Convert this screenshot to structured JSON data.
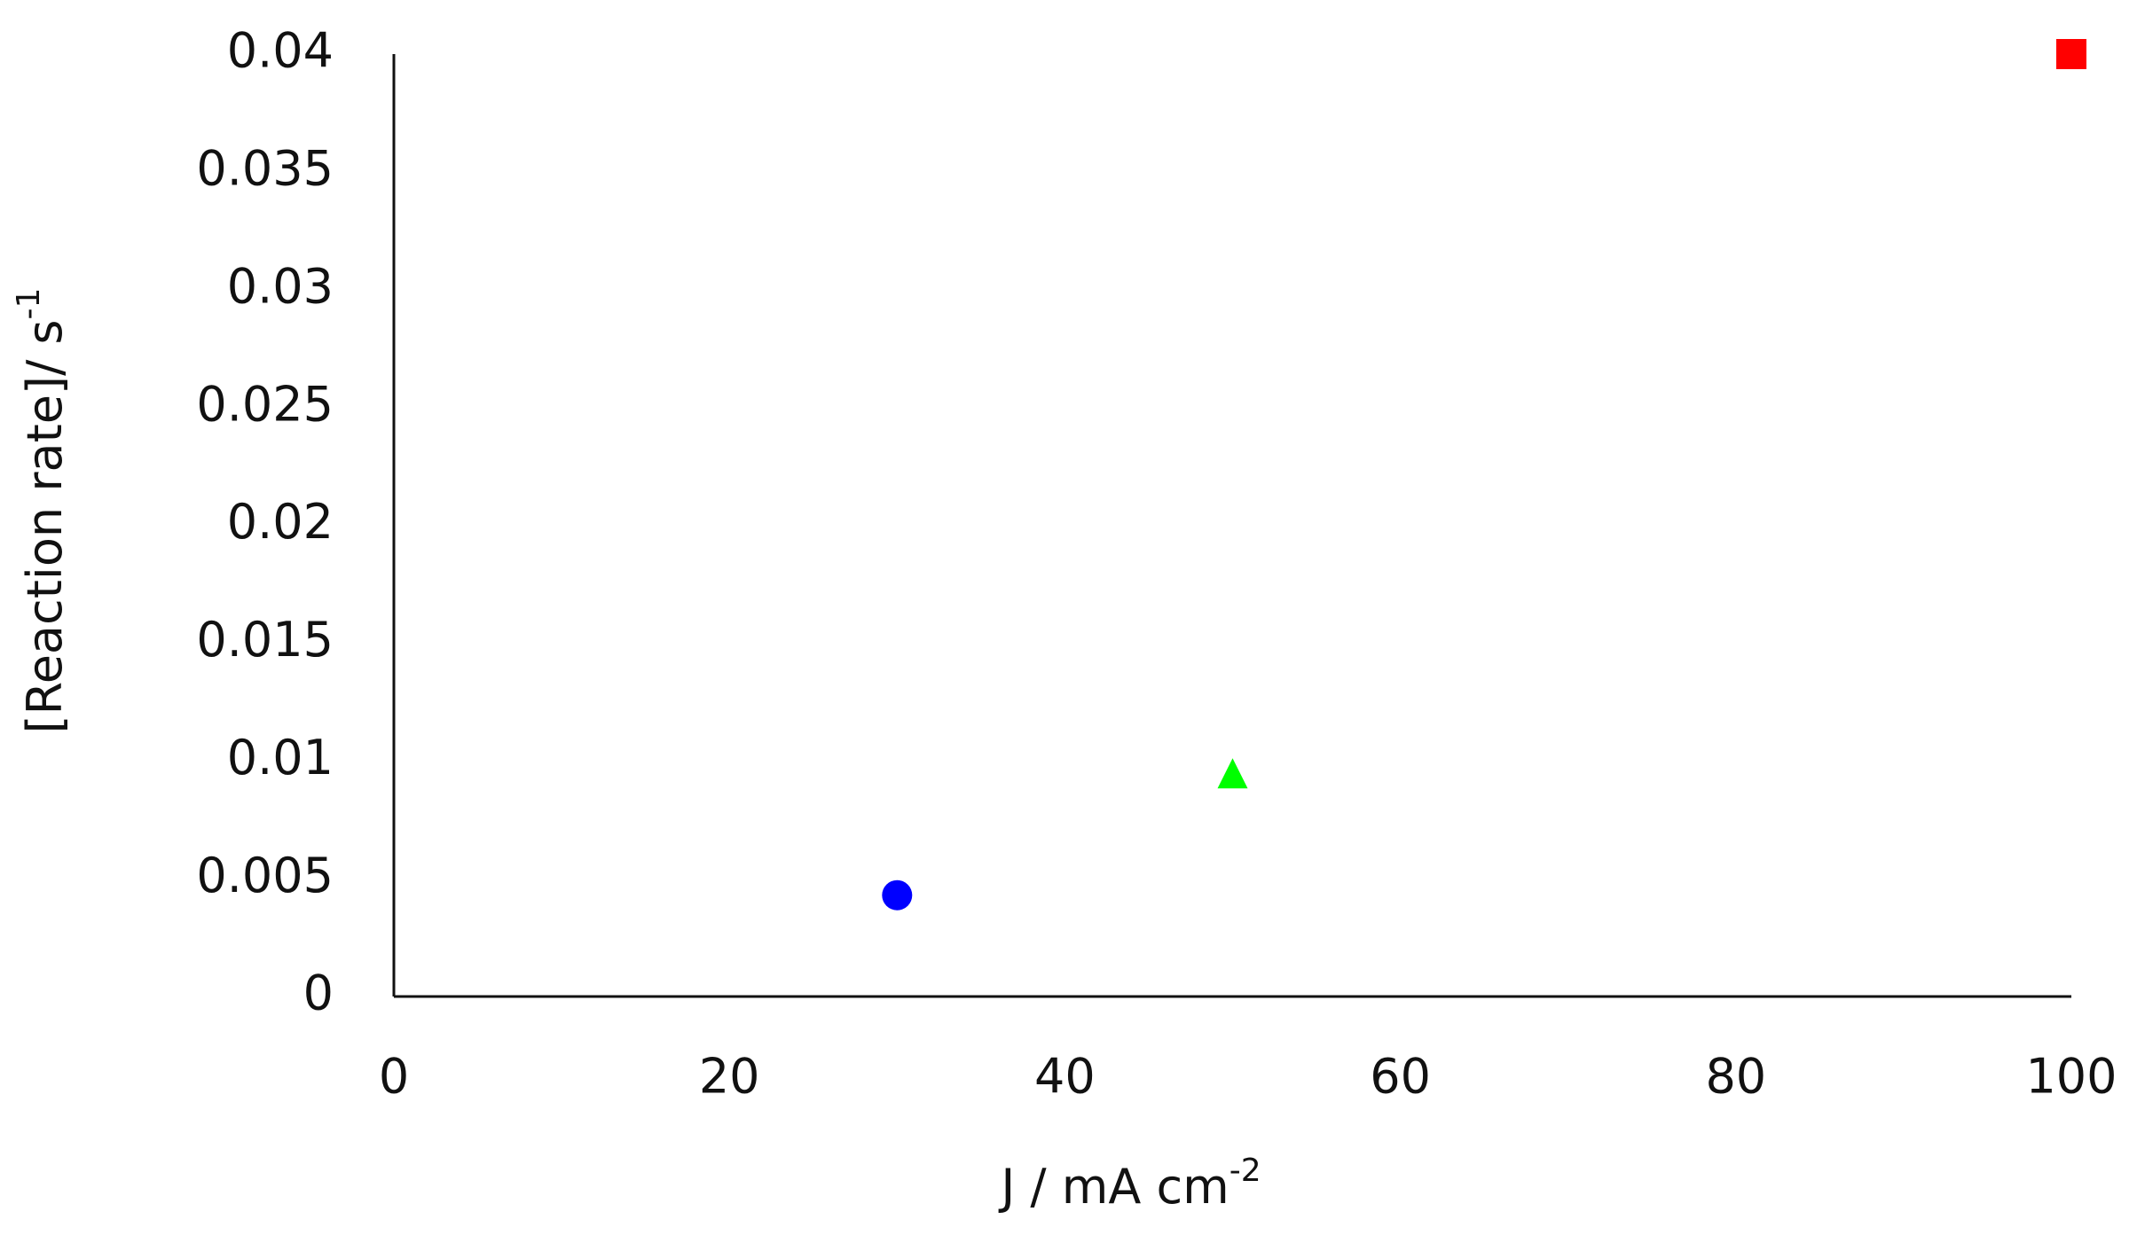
{
  "chart_data": {
    "type": "scatter",
    "x_label": {
      "text": "J /  mA cm",
      "superscript": "-2"
    },
    "y_label": {
      "text": "[Reaction rate]/ s",
      "superscript": "-1"
    },
    "x": [
      30,
      50,
      100
    ],
    "values": [
      0.0043,
      0.0094,
      0.04
    ],
    "colors": [
      "#0000ff",
      "#00ff00",
      "#ff0000"
    ],
    "markers": [
      "circle",
      "triangle",
      "square"
    ],
    "xlim": [
      0,
      100
    ],
    "xticks": [
      0,
      20,
      40,
      60,
      80,
      100
    ],
    "ylim": [
      0,
      0.04
    ],
    "yticks": [
      0,
      0.005,
      0.01,
      0.015,
      0.02,
      0.025,
      0.03,
      0.035,
      0.04
    ],
    "grid": false
  }
}
